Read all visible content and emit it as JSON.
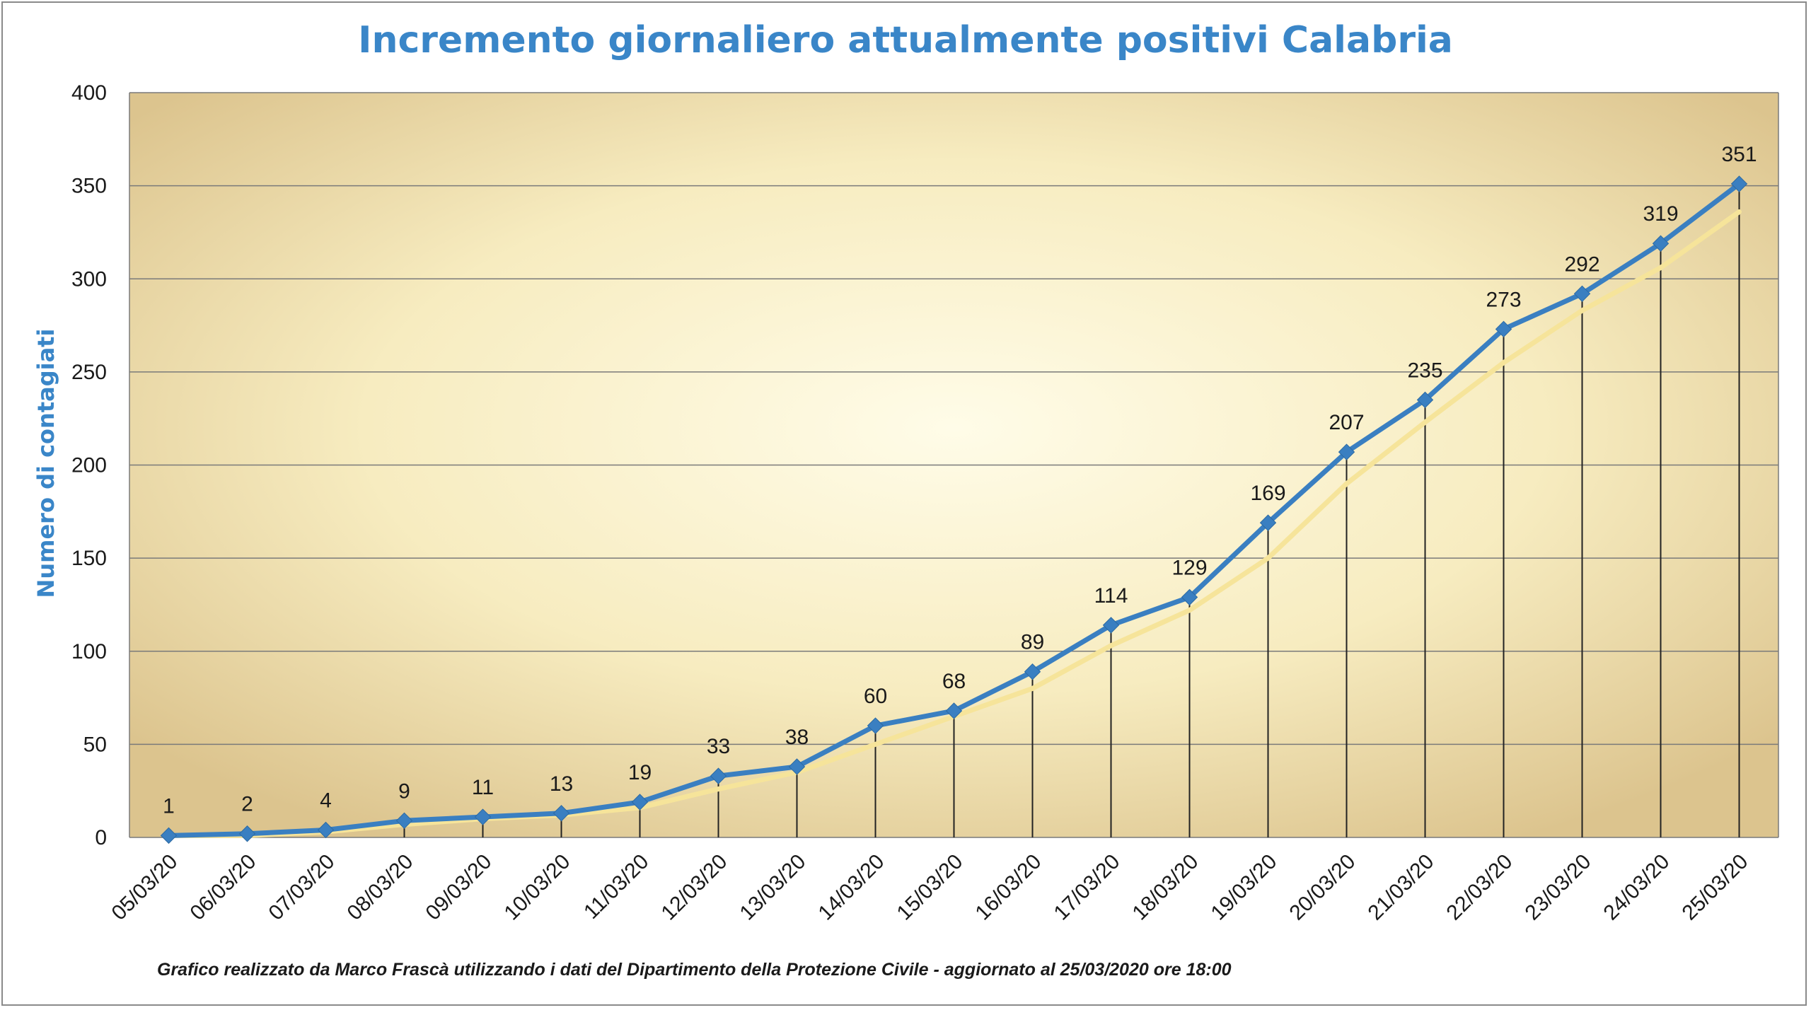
{
  "chart_data": {
    "type": "line",
    "title": "Incremento giornaliero attualmente positivi Calabria",
    "ylabel": "Numero di contagiati",
    "xlabel": "",
    "footnote": "Grafico  realizzato da Marco Frascà  utilizzando i dati del Dipartimento  della Protezione Civile - aggiornato al 25/03/2020 ore 18:00",
    "categories": [
      "05/03/20",
      "06/03/20",
      "07/03/20",
      "08/03/20",
      "09/03/20",
      "10/03/20",
      "11/03/20",
      "12/03/20",
      "13/03/20",
      "14/03/20",
      "15/03/20",
      "16/03/20",
      "17/03/20",
      "18/03/20",
      "19/03/20",
      "20/03/20",
      "21/03/20",
      "22/03/20",
      "23/03/20",
      "24/03/20",
      "25/03/20"
    ],
    "series": [
      {
        "values": [
          1,
          2,
          4,
          9,
          11,
          13,
          19,
          33,
          38,
          60,
          68,
          89,
          114,
          129,
          169,
          207,
          235,
          273,
          292,
          319,
          351
        ],
        "color": "#3a7fc1"
      },
      {
        "values": [
          1,
          1,
          3,
          7,
          10,
          12,
          16,
          26,
          35,
          50,
          65,
          80,
          103,
          122,
          150,
          190,
          223,
          255,
          283,
          306,
          336
        ],
        "color": "#f6e49a"
      }
    ],
    "data_labels": [
      "1",
      "2",
      "4",
      "9",
      "11",
      "13",
      "19",
      "33",
      "38",
      "60",
      "68",
      "89",
      "114",
      "129",
      "169",
      "207",
      "235",
      "273",
      "292",
      "319",
      "351"
    ],
    "y_ticks": [
      0,
      50,
      100,
      150,
      200,
      250,
      300,
      350,
      400
    ],
    "ylim": [
      0,
      400
    ],
    "grid": true,
    "drop_lines": true,
    "marker": "diamond",
    "colors": {
      "title": "#3a86c8",
      "plot_center": "#fffce8",
      "plot_mid": "#f7ecc0",
      "plot_edge": "#dcc48e",
      "gridline": "#7a7a7a",
      "drop_line": "#222222"
    }
  }
}
